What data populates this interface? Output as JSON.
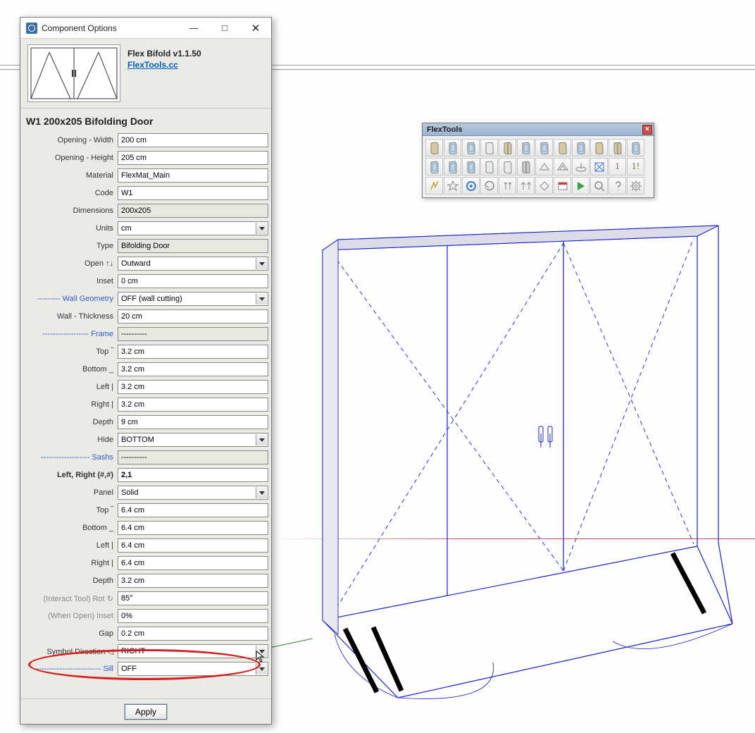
{
  "window": {
    "title": "Component Options"
  },
  "header": {
    "name": "Flex Bifold v1.1.50",
    "link": "FlexTools.cc"
  },
  "section_title": "W1 200x205 Bifolding Door",
  "fields": [
    {
      "label": "Opening - Width",
      "value": "200 cm",
      "type": "text"
    },
    {
      "label": "Opening - Height",
      "value": "205 cm",
      "type": "text"
    },
    {
      "label": "Material",
      "value": "FlexMat_Main",
      "type": "text"
    },
    {
      "label": "Code",
      "value": "W1",
      "type": "text"
    },
    {
      "label": "Dimensions",
      "value": "200x205",
      "type": "readonly"
    },
    {
      "label": "Units",
      "value": "cm",
      "type": "dropdown"
    },
    {
      "label": "Type",
      "value": "Bifolding Door",
      "type": "readonly"
    },
    {
      "label": "Open ↑↓",
      "value": "Outward",
      "type": "dropdown"
    },
    {
      "label": "Inset",
      "value": "0 cm",
      "type": "text"
    },
    {
      "label": "--------- Wall Geometry",
      "value": "OFF (wall cutting)",
      "type": "dropdown",
      "section": true
    },
    {
      "label": "Wall - Thickness",
      "value": "20 cm",
      "type": "text"
    },
    {
      "label": "------------------ Frame",
      "value": "----------",
      "type": "readonly",
      "section": true
    },
    {
      "label": "Top ‾",
      "value": "3.2 cm",
      "type": "text"
    },
    {
      "label": "Bottom _",
      "value": "3.2 cm",
      "type": "text"
    },
    {
      "label": "Left |",
      "value": "3.2 cm",
      "type": "text"
    },
    {
      "label": "Right |",
      "value": "3.2 cm",
      "type": "text"
    },
    {
      "label": "Depth",
      "value": "9 cm",
      "type": "text"
    },
    {
      "label": "Hide",
      "value": "BOTTOM",
      "type": "dropdown"
    },
    {
      "label": "------------------- Sashs",
      "value": "----------",
      "type": "readonly",
      "section": true
    },
    {
      "label": "Left, Right (#,#)",
      "value": "2,1",
      "type": "text",
      "bold": true
    },
    {
      "label": "Panel",
      "value": "Solid",
      "type": "dropdown"
    },
    {
      "label": "Top ‾",
      "value": "6.4 cm",
      "type": "text"
    },
    {
      "label": "Bottom _",
      "value": "6.4 cm",
      "type": "text"
    },
    {
      "label": "Left |",
      "value": "6.4 cm",
      "type": "text"
    },
    {
      "label": "Right |",
      "value": "6.4 cm",
      "type": "text"
    },
    {
      "label": "Depth",
      "value": "3.2 cm",
      "type": "text"
    },
    {
      "label": "(Interact Tool) Rot ↻",
      "value": "85°",
      "type": "text",
      "grey": true
    },
    {
      "label": "(When Open) Inset",
      "value": "0%",
      "type": "text",
      "grey": true
    },
    {
      "label": "Gap",
      "value": "0.2 cm",
      "type": "text"
    },
    {
      "label": "Symbol Direction ◁",
      "value": "RIGHT",
      "type": "dropdown"
    },
    {
      "label": "------------------------- Sill",
      "value": "OFF",
      "type": "dropdown",
      "section": true
    }
  ],
  "apply": "Apply",
  "flextools": {
    "title": "FlexTools"
  },
  "colors": {
    "wire": "#1820c8",
    "wire_thin": "#2a34d8",
    "accent_red": "#d42020",
    "toolbar_title": "#b0c3db"
  }
}
